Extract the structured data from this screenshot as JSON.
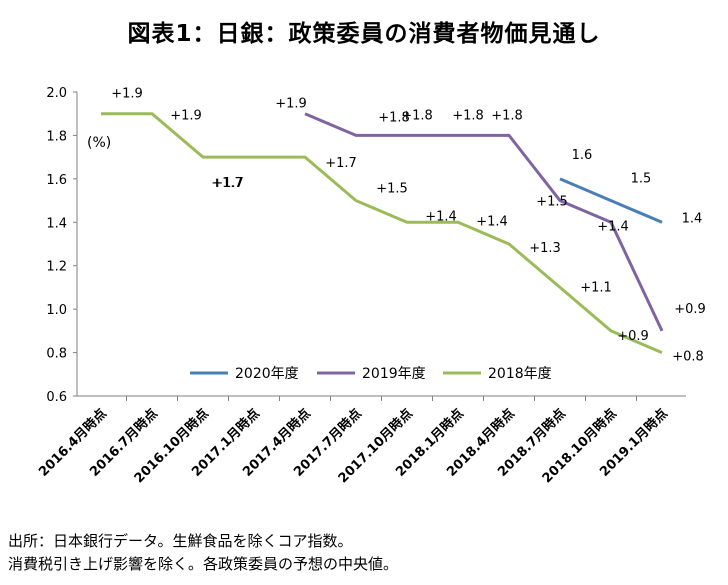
{
  "title": "図表1：日銀：政策委員の消費者物価見通し",
  "notes": [
    "出所：日本銀行データ。生鮮食品を除くコア指数。",
    "消費税引き上げ影響を除く。各政策委員の予想の中央値。"
  ],
  "chart_data": {
    "type": "line",
    "title": "図表1：日銀：政策委員の消費者物価見通し",
    "unit_label": "(%)",
    "xlabel": "",
    "ylabel": "",
    "ylim": [
      0.6,
      2.0
    ],
    "yticks": [
      "0.6",
      "0.8",
      "1.0",
      "1.2",
      "1.4",
      "1.6",
      "1.8",
      "2.0"
    ],
    "categories": [
      "2016.4月時点",
      "2016.7月時点",
      "2016.10月時点",
      "2017.1月時点",
      "2017.4月時点",
      "2017.7月時点",
      "2017.10月時点",
      "2018.1月時点",
      "2018.4月時点",
      "2018.7月時点",
      "2018.10月時点",
      "2019.1月時点"
    ],
    "grid": false,
    "legend": "bottom-center",
    "series": [
      {
        "name": "2020年度",
        "color": "#4a7fb5",
        "values": [
          null,
          null,
          null,
          null,
          null,
          null,
          null,
          null,
          null,
          1.6,
          1.5,
          1.4
        ],
        "labels": [
          null,
          null,
          null,
          null,
          null,
          null,
          null,
          null,
          null,
          "1.6",
          "1.5",
          "1.4"
        ]
      },
      {
        "name": "2019年度",
        "color": "#8064a2",
        "values": [
          null,
          null,
          null,
          null,
          1.9,
          1.8,
          1.8,
          1.8,
          1.8,
          1.5,
          1.4,
          0.9
        ],
        "labels": [
          null,
          null,
          null,
          null,
          "+1.9",
          "+1.8",
          "+1.8",
          "+1.8",
          "+1.8",
          "+1.5",
          "+1.4",
          "+0.9"
        ]
      },
      {
        "name": "2018年度",
        "color": "#9bbb59",
        "values": [
          1.9,
          1.9,
          1.7,
          1.7,
          1.7,
          1.5,
          1.4,
          1.4,
          1.3,
          1.1,
          0.9,
          0.8
        ],
        "labels": [
          "+1.9",
          "+1.9",
          "+1.7",
          "+1.7",
          "+1.7",
          "+1.5",
          "+1.4",
          "+1.4",
          "+1.3",
          "+1.1",
          "+0.9",
          "+0.8"
        ]
      }
    ]
  }
}
